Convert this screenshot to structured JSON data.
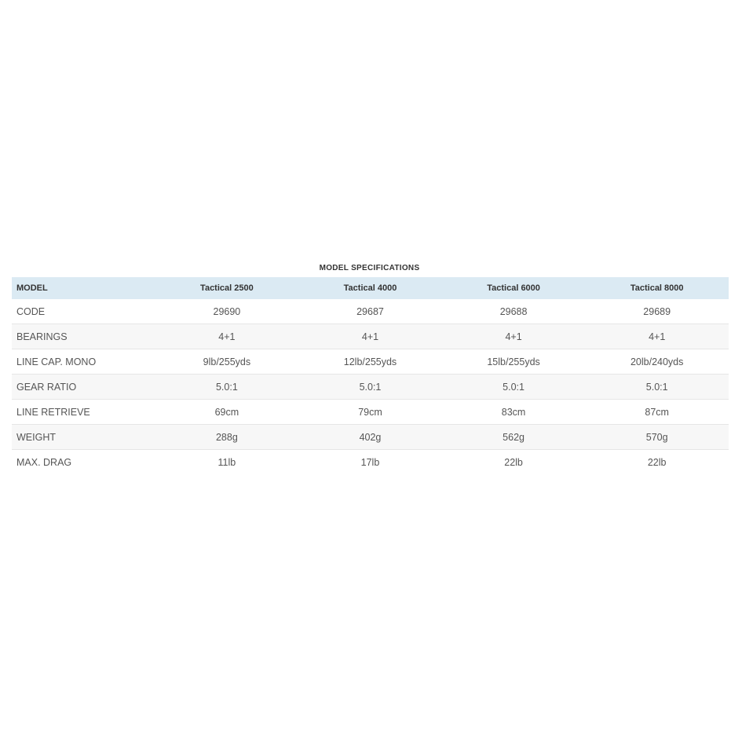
{
  "title": "MODEL SPECIFICATIONS",
  "headers": [
    "MODEL",
    "Tactical 2500",
    "Tactical 4000",
    "Tactical 6000",
    "Tactical 8000"
  ],
  "rows": [
    [
      "CODE",
      "29690",
      "29687",
      "29688",
      "29689"
    ],
    [
      "BEARINGS",
      "4+1",
      "4+1",
      "4+1",
      "4+1"
    ],
    [
      "LINE CAP. MONO",
      "9lb/255yds",
      "12lb/255yds",
      "15lb/255yds",
      "20lb/240yds"
    ],
    [
      "GEAR RATIO",
      "5.0:1",
      "5.0:1",
      "5.0:1",
      "5.0:1"
    ],
    [
      "LINE RETRIEVE",
      "69cm",
      "79cm",
      "83cm",
      "87cm"
    ],
    [
      "WEIGHT",
      "288g",
      "402g",
      "562g",
      "570g"
    ],
    [
      "MAX. DRAG",
      "11lb",
      "17lb",
      "22lb",
      "22lb"
    ]
  ],
  "colors": {
    "header_bg": "#dbeaf3",
    "alt_row_bg": "#f7f7f7"
  }
}
